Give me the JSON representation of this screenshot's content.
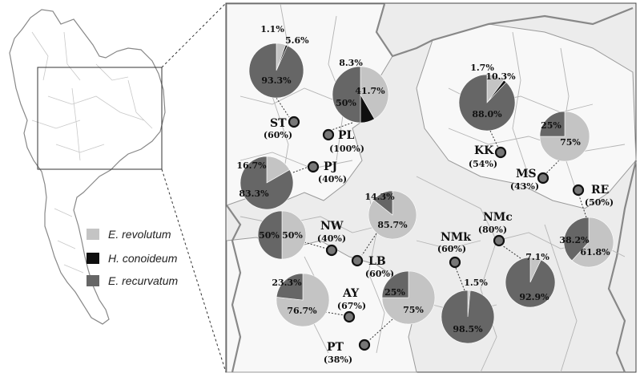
{
  "colors": {
    "revolutum": "#c4c4c4",
    "conoideum": "#0f0f0f",
    "recurvatum": "#666666",
    "map_background": "#ececec",
    "marker_fill": "#777777"
  },
  "legend": [
    {
      "label": "E. revolutum",
      "color": "#c4c4c4"
    },
    {
      "label": "H. conoideum",
      "color": "#0f0f0f"
    },
    {
      "label": "E. recurvatum",
      "color": "#666666"
    }
  ],
  "sites": [
    {
      "id": "ST",
      "code": "ST",
      "rate": "(60%)",
      "slices": [
        {
          "species": "revolutum",
          "pct": 5.6
        },
        {
          "species": "conoideum",
          "pct": 1.1
        },
        {
          "species": "recurvatum",
          "pct": 93.3
        }
      ],
      "labels": [
        "5.6%",
        "1.1%",
        "93.3%"
      ]
    },
    {
      "id": "PL",
      "code": "PL",
      "rate": "(100%)",
      "slices": [
        {
          "species": "revolutum",
          "pct": 41.7
        },
        {
          "species": "conoideum",
          "pct": 8.3
        },
        {
          "species": "recurvatum",
          "pct": 50
        }
      ],
      "labels": [
        "41.7%",
        "8.3%",
        "50%"
      ]
    },
    {
      "id": "PJ",
      "code": "PJ",
      "rate": "(40%)",
      "slices": [
        {
          "species": "revolutum",
          "pct": 16.7
        },
        {
          "species": "recurvatum",
          "pct": 83.3
        }
      ],
      "labels": [
        "16.7%",
        "83.3%"
      ]
    },
    {
      "id": "NW",
      "code": "NW",
      "rate": "(40%)",
      "slices": [
        {
          "species": "revolutum",
          "pct": 50
        },
        {
          "species": "recurvatum",
          "pct": 50
        }
      ],
      "labels": [
        "50%",
        "50%"
      ]
    },
    {
      "id": "LB",
      "code": "LB",
      "rate": "(60%)",
      "slices": [
        {
          "species": "revolutum",
          "pct": 85.7
        },
        {
          "species": "recurvatum",
          "pct": 14.3
        }
      ],
      "labels": [
        "85.7%",
        "14.3%"
      ]
    },
    {
      "id": "AY",
      "code": "AY",
      "rate": "(67%)",
      "slices": [
        {
          "species": "revolutum",
          "pct": 76.7
        },
        {
          "species": "recurvatum",
          "pct": 23.3
        }
      ],
      "labels": [
        "76.7%",
        "23.3%"
      ]
    },
    {
      "id": "PT",
      "code": "PT",
      "rate": "(38%)",
      "slices": [
        {
          "species": "revolutum",
          "pct": 75
        },
        {
          "species": "recurvatum",
          "pct": 25
        }
      ],
      "labels": [
        "75%",
        "25%"
      ]
    },
    {
      "id": "KK",
      "code": "KK",
      "rate": "(54%)",
      "slices": [
        {
          "species": "revolutum",
          "pct": 10.3
        },
        {
          "species": "conoideum",
          "pct": 1.7
        },
        {
          "species": "recurvatum",
          "pct": 88.0
        }
      ],
      "labels": [
        "10.3%",
        "1.7%",
        "88.0%"
      ]
    },
    {
      "id": "MS",
      "code": "MS",
      "rate": "(43%)",
      "slices": [
        {
          "species": "revolutum",
          "pct": 75
        },
        {
          "species": "recurvatum",
          "pct": 25
        }
      ],
      "labels": [
        "75%",
        "25%"
      ]
    },
    {
      "id": "RE",
      "code": "RE",
      "rate": "(50%)",
      "slices": [
        {
          "species": "revolutum",
          "pct": 61.8
        },
        {
          "species": "recurvatum",
          "pct": 38.2
        }
      ],
      "labels": [
        "61.8%",
        "38.2%"
      ]
    },
    {
      "id": "NMc",
      "code": "NMc",
      "rate": "(80%)",
      "slices": [
        {
          "species": "revolutum",
          "pct": 7.1
        },
        {
          "species": "recurvatum",
          "pct": 92.9
        }
      ],
      "labels": [
        "7.1%",
        "92.9%"
      ]
    },
    {
      "id": "NMk",
      "code": "NMk",
      "rate": "(60%)",
      "slices": [
        {
          "species": "revolutum",
          "pct": 1.5
        },
        {
          "species": "recurvatum",
          "pct": 98.5
        }
      ],
      "labels": [
        "1.5%",
        "98.5%"
      ]
    }
  ]
}
